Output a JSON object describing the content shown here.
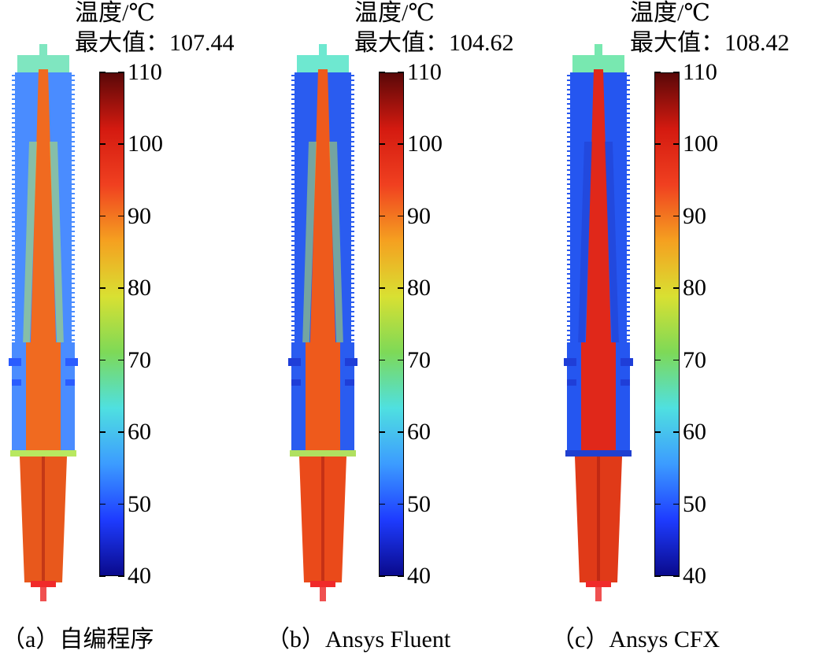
{
  "scale": {
    "min": 40,
    "max": 110,
    "ticks": [
      "110",
      "100",
      "90",
      "80",
      "70",
      "60",
      "50",
      "40"
    ]
  },
  "colormap": [
    "#0a0a8c",
    "#1e3cff",
    "#3c9cff",
    "#4fe0e0",
    "#7ed957",
    "#d9e032",
    "#f5a020",
    "#f04020",
    "#d41a10",
    "#5a0808"
  ],
  "panels": [
    {
      "id": "a",
      "title_line1": "温度/℃",
      "title_line2": "最大值：107.44",
      "caption": "（a）自编程序",
      "max_value": 107.44,
      "colors": {
        "shed": "#4a8cff",
        "top": "#7fe6c0",
        "core": "#f06a20",
        "flange": "#2a5cff",
        "lower": "#e8581c",
        "ring": "#b8e860"
      }
    },
    {
      "id": "b",
      "title_line1": "温度/℃",
      "title_line2": "最大值：104.62",
      "caption": "（b）Ansys Fluent",
      "max_value": 104.62,
      "colors": {
        "shed": "#2a5cf0",
        "top": "#6ee8d0",
        "core": "#ee5a1c",
        "flange": "#1f3ed8",
        "lower": "#ea4a1a",
        "ring": "#b0e060"
      }
    },
    {
      "id": "c",
      "title_line1": "温度/℃",
      "title_line2": "最大值：108.42",
      "caption": "（c）Ansys CFX",
      "max_value": 108.42,
      "colors": {
        "shed": "#2556f0",
        "top": "#78e8b0",
        "core": "#e0281a",
        "flange": "#1f3ed8",
        "lower": "#e03a18",
        "ring": "#2040d0"
      }
    }
  ]
}
